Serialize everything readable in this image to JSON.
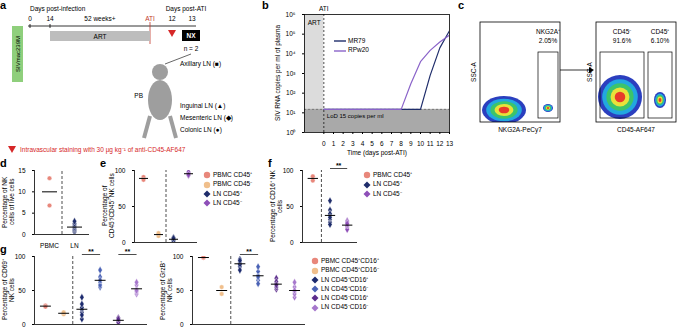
{
  "diagram": {
    "panel": "a",
    "timeline_label": "Days post-infection",
    "infection_days": [
      "0",
      "14"
    ],
    "duration": "52 weeks+",
    "ati": "ATI",
    "art": "ART",
    "post_ati_label": "Days post-ATI",
    "post_ati_days": [
      "12",
      "13"
    ],
    "virus": "SIVmac239M",
    "necropsy": "NX",
    "n": "n = 2",
    "sites": [
      "Inguinal LN (▲)",
      "Axillary LN (■)",
      "Mesenteric LN (◆)",
      "Colonic LN (●)",
      "PB"
    ],
    "staining": "Intravascular staining with 30 µg kg⁻¹ of anti-CD45-AF647"
  },
  "flow": {
    "panel": "c",
    "plots": [
      {
        "y_label": "SSC-A",
        "x_label": "NKG2A-PeCy7",
        "gates": [
          {
            "label": "NKG2A⁺",
            "percent": "2.05%"
          }
        ]
      },
      {
        "y_label": "SSC-A",
        "x_label": "CD45-AF647",
        "gates": [
          {
            "label": "CD45⁻",
            "percent": "91.6%"
          },
          {
            "label": "CD45⁺",
            "percent": "6.10%"
          }
        ]
      }
    ]
  },
  "chart_data": [
    {
      "panel": "b",
      "type": "line",
      "y_label": "SIV RNA copies per ml of plasma",
      "x_label": "Time (days post-ATI)",
      "x": [
        0,
        1,
        2,
        3,
        4,
        5,
        6,
        7,
        8,
        9,
        10,
        11,
        12,
        13
      ],
      "series": [
        {
          "name": "MR79",
          "color": "#1f2d6b",
          "values": [
            15,
            15,
            15,
            15,
            15,
            15,
            15,
            15,
            15,
            15,
            15,
            800,
            20000,
            150000
          ]
        },
        {
          "name": "RPw20",
          "color": "#8a63c9",
          "values": [
            15,
            15,
            15,
            15,
            15,
            15,
            15,
            15,
            15,
            300,
            4000,
            15000,
            40000,
            90000
          ]
        }
      ],
      "xlim": [
        -2,
        13
      ],
      "xticks": [
        0,
        1,
        2,
        3,
        4,
        5,
        6,
        7,
        8,
        9,
        10,
        11,
        12,
        13
      ],
      "ylim": [
        1,
        1000000
      ],
      "yticks": [
        {
          "value": 1,
          "label": "10⁰"
        },
        {
          "value": 10,
          "label": "10¹"
        },
        {
          "value": 100,
          "label": "10²"
        },
        {
          "value": 1000,
          "label": "10³"
        },
        {
          "value": 10000,
          "label": "10⁴"
        },
        {
          "value": 100000,
          "label": "10⁵"
        },
        {
          "value": 1000000,
          "label": "10⁶"
        }
      ],
      "log": "y",
      "art": {
        "text": "ART",
        "x": -1
      },
      "ati": {
        "text": "ATI",
        "x": 0
      },
      "lod": {
        "text": "LoD 15 copies per ml",
        "y": 15
      }
    },
    {
      "panel": "d",
      "type": "scatter",
      "y_label": "Percentage of NK cells of live cells",
      "series": [
        {
          "name": "PBMC",
          "color": "#e8877b",
          "marker": "circle",
          "values": [
            13.2,
            6.8
          ]
        },
        {
          "name": "LN",
          "color": "#1f2d6b",
          "marker": "diamond",
          "values": [
            0.6,
            0.9,
            1.2,
            1.5,
            1.8,
            2.2,
            2.6,
            3.1
          ]
        }
      ],
      "ylim": [
        0,
        15
      ],
      "yticks": [
        0,
        5,
        10,
        15
      ]
    },
    {
      "panel": "e",
      "type": "scatter",
      "y_label": "Percentage of CD45⁺/CD45⁻ NK cells",
      "series": [
        {
          "name": "PBMC CD45⁺",
          "color": "#e8877b",
          "marker": "circle",
          "values": [
            91,
            87
          ]
        },
        {
          "name": "PBMC CD45⁻",
          "color": "#f0bf8c",
          "marker": "circle",
          "values": [
            9,
            13
          ]
        },
        {
          "name": "LN CD45⁺",
          "color": "#1f2d6b",
          "marker": "diamond",
          "values": [
            3,
            5,
            4,
            7,
            2,
            6
          ]
        },
        {
          "name": "LN CD45⁻",
          "color": "#8e4fb8",
          "marker": "diamond",
          "values": [
            97,
            95,
            96,
            93,
            98,
            94
          ]
        }
      ],
      "ylim": [
        0,
        100
      ],
      "yticks": [
        0,
        50,
        100
      ],
      "tick_labels": "y",
      "legend": "right"
    },
    {
      "panel": "f",
      "type": "scatter",
      "y_label": "Percentage of CD16⁺ NK cells",
      "series": [
        {
          "name": "PBMC CD45⁺",
          "color": "#e8877b",
          "marker": "circle",
          "values": [
            86,
            92
          ]
        },
        {
          "name": "LN CD45⁺",
          "color": "#1f2d6b",
          "marker": "diamond",
          "values": [
            58,
            45,
            38,
            32,
            28,
            40,
            35,
            25
          ]
        },
        {
          "name": "LN CD45⁻",
          "color": "#8e4fb8",
          "marker": "diamond",
          "values": [
            30,
            25,
            20,
            28,
            22,
            18,
            24,
            26
          ]
        }
      ],
      "ylim": [
        0,
        100
      ],
      "yticks": [
        0,
        50,
        100
      ],
      "tick_labels": "y",
      "legend": "right",
      "annotations": [
        {
          "text": "**",
          "from": "LN CD45⁺",
          "to": "LN CD45⁻"
        }
      ]
    },
    {
      "panel": "g",
      "type": "scatter",
      "y_label": "Percentage of CD69⁺ NK cells",
      "series": [
        {
          "name": "PBMC CD45⁺CD16⁺",
          "color": "#e8877b",
          "marker": "circle",
          "values": [
            28,
            26
          ]
        },
        {
          "name": "PBMC CD45⁺CD16⁻",
          "color": "#f0bf8c",
          "marker": "circle",
          "values": [
            15,
            18
          ]
        },
        {
          "name": "LN CD45⁺CD16⁺",
          "color": "#1c2a6e",
          "marker": "diamond",
          "values": [
            8,
            18,
            22,
            25,
            40,
            30,
            14
          ]
        },
        {
          "name": "LN CD45⁺CD16⁻",
          "color": "#4a62b5",
          "marker": "diamond",
          "values": [
            55,
            62,
            70,
            58,
            80,
            65
          ]
        },
        {
          "name": "LN CD45⁻CD16⁺",
          "color": "#5c2d8c",
          "marker": "diamond",
          "values": [
            4,
            7,
            10,
            5,
            3,
            8
          ]
        },
        {
          "name": "LN CD45⁻CD16⁻",
          "color": "#a677cc",
          "marker": "diamond",
          "values": [
            45,
            52,
            58,
            48,
            62,
            50
          ]
        }
      ],
      "ylim": [
        0,
        100
      ],
      "yticks": [
        0,
        50,
        100
      ],
      "tick_labels": "y",
      "annotations": [
        {
          "text": "**",
          "from": "LN CD45⁺CD16⁺",
          "to": "LN CD45⁺CD16⁻"
        },
        {
          "text": "**",
          "from": "LN CD45⁻CD16⁺",
          "to": "LN CD45⁻CD16⁻"
        }
      ]
    },
    {
      "type": "scatter",
      "y_label": "Percentage of GrzB⁺ NK cells",
      "series": [
        {
          "name": "PBMC CD45⁺CD16⁺",
          "color": "#e8877b",
          "marker": "circle",
          "values": [
            98,
            99
          ]
        },
        {
          "name": "PBMC CD45⁺CD16⁻",
          "color": "#f0bf8c",
          "marker": "circle",
          "values": [
            45,
            55
          ]
        },
        {
          "name": "LN CD45⁺CD16⁺",
          "color": "#1c2a6e",
          "marker": "diamond",
          "values": [
            85,
            92,
            96,
            90,
            88,
            80,
            94
          ]
        },
        {
          "name": "LN CD45⁺CD16⁻",
          "color": "#4a62b5",
          "marker": "diamond",
          "values": [
            65,
            72,
            78,
            85,
            60,
            70
          ]
        },
        {
          "name": "LN CD45⁻CD16⁺",
          "color": "#5c2d8c",
          "marker": "diamond",
          "values": [
            52,
            60,
            68,
            55,
            63,
            58
          ]
        },
        {
          "name": "LN CD45⁻CD16⁻",
          "color": "#a677cc",
          "marker": "diamond",
          "values": [
            40,
            48,
            55,
            45,
            62,
            50
          ]
        }
      ],
      "ylim": [
        0,
        100
      ],
      "yticks": [
        0,
        50,
        100
      ],
      "tick_labels": "y",
      "legend": "right",
      "annotations": [
        {
          "text": "**",
          "from": "LN CD45⁺CD16⁺",
          "to": "LN CD45⁺CD16⁻"
        }
      ]
    }
  ]
}
